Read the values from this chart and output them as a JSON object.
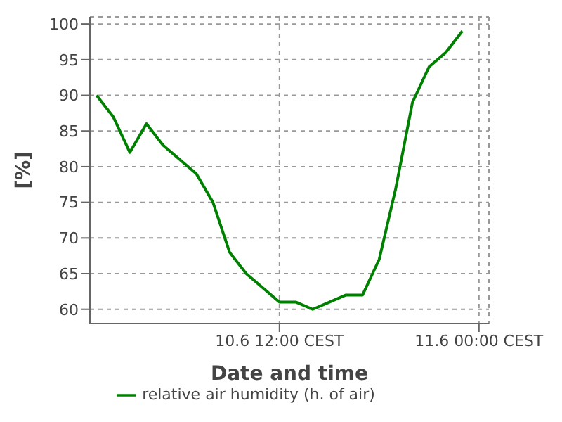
{
  "chart_data": {
    "type": "line",
    "xlabel": "Date and time",
    "ylabel": "[%]",
    "x": [
      "--06-10T01:00",
      "--06-10T02:00",
      "--06-10T03:00",
      "--06-10T04:00",
      "--06-10T05:00",
      "--06-10T06:00",
      "--06-10T07:00",
      "--06-10T08:00",
      "--06-10T09:00",
      "--06-10T10:00",
      "--06-10T11:00",
      "--06-10T12:00",
      "--06-10T13:00",
      "--06-10T14:00",
      "--06-10T15:00",
      "--06-10T16:00",
      "--06-10T17:00",
      "--06-10T18:00",
      "--06-10T19:00",
      "--06-10T20:00",
      "--06-10T21:00",
      "--06-10T22:00",
      "--06-10T23:00"
    ],
    "series": [
      {
        "name": "relative air humidity (h. of air)",
        "color": "#008000",
        "values": [
          90,
          87,
          82,
          86,
          83,
          81,
          79,
          75,
          68,
          65,
          63,
          61,
          61,
          60,
          61,
          62,
          62,
          67,
          77,
          89,
          94,
          96,
          99
        ]
      }
    ],
    "xlim": [
      "--06-10T00:36",
      "--06-11T00:36"
    ],
    "xticks": [
      {
        "value": "--06-10T12:00",
        "label": "10.6 12:00 CEST"
      },
      {
        "value": "--06-11T00:00",
        "label": "11.6 00:00 CEST"
      }
    ],
    "ylim": [
      58,
      101
    ],
    "yticks": [
      60,
      65,
      70,
      75,
      80,
      85,
      90,
      95,
      100
    ],
    "grid": true,
    "legend": "bottom",
    "marker": "none",
    "line_style": "solid"
  }
}
